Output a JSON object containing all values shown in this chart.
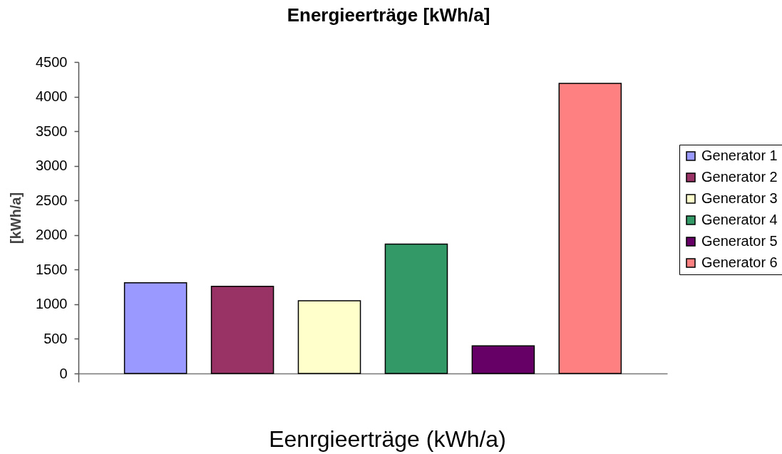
{
  "chart_data": {
    "type": "bar",
    "title": "Energieerträge [kWh/a]",
    "xlabel": "Eenrgieerträge (kWh/a)",
    "ylabel": "[kWh/a]",
    "categories": [
      null
    ],
    "series": [
      {
        "name": "Generator 1",
        "color": "#9999ff",
        "values": [
          1310
        ]
      },
      {
        "name": "Generator 2",
        "color": "#993366",
        "values": [
          1260
        ]
      },
      {
        "name": "Generator 3",
        "color": "#ffffcc",
        "values": [
          1050
        ]
      },
      {
        "name": "Generator 4",
        "color": "#339966",
        "values": [
          1870
        ]
      },
      {
        "name": "Generator 5",
        "color": "#660066",
        "values": [
          400
        ]
      },
      {
        "name": "Generator 6",
        "color": "#ff8080",
        "values": [
          4190
        ]
      }
    ],
    "ylim": [
      0,
      4500
    ],
    "yticks": [
      0,
      500,
      1000,
      1500,
      2000,
      2500,
      3000,
      3500,
      4000,
      4500
    ],
    "grid": false,
    "legend": "right"
  }
}
